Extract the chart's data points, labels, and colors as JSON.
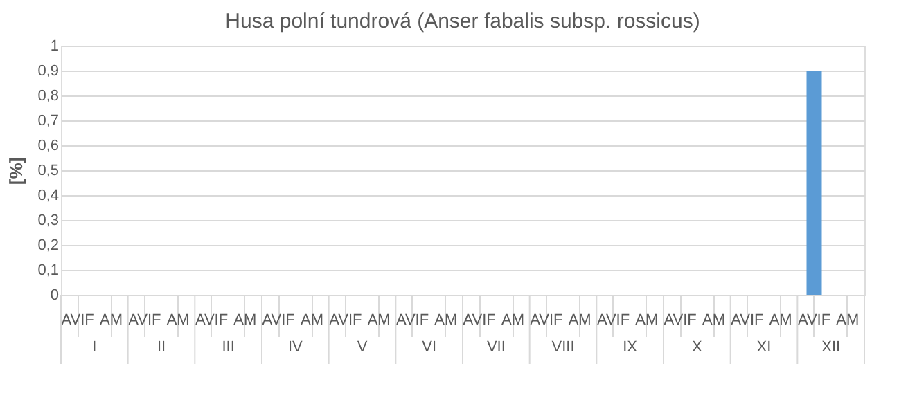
{
  "chart_data": {
    "type": "bar",
    "title": "Husa polní tundrová (Anser fabalis subsp. rossicus)",
    "ylabel": "[%]",
    "categories": [
      "AVIF",
      "AM",
      "AVIF",
      "AM",
      "AVIF",
      "AM",
      "AVIF",
      "AM",
      "AVIF",
      "AM",
      "AVIF",
      "AM",
      "AVIF",
      "AM",
      "AVIF",
      "AM",
      "AVIF",
      "AM",
      "AVIF",
      "AM",
      "AVIF",
      "AM",
      "AVIF",
      "AM"
    ],
    "annotations": [
      "I",
      "II",
      "III",
      "IV",
      "V",
      "VI",
      "VII",
      "VIII",
      "IX",
      "X",
      "XI",
      "XII"
    ],
    "series": [
      {
        "color": "#5b9bd5",
        "values": [
          0,
          0,
          0,
          0,
          0,
          0,
          0,
          0,
          0,
          0,
          0,
          0,
          0,
          0,
          0,
          0,
          0,
          0,
          0,
          0,
          0,
          0,
          0.9,
          0
        ]
      }
    ],
    "ylim": [
      0,
      1
    ],
    "yticks": [
      0,
      {
        "value": 0.1,
        "label": "0,1"
      },
      {
        "value": 0.2,
        "label": "0,2"
      },
      {
        "value": 0.3,
        "label": "0,3"
      },
      {
        "value": 0.4,
        "label": "0,4"
      },
      {
        "value": 0.5,
        "label": "0,5"
      },
      {
        "value": 0.6,
        "label": "0,6"
      },
      {
        "value": 0.7,
        "label": "0,7"
      },
      {
        "value": 0.8,
        "label": "0,8"
      },
      {
        "value": 0.9,
        "label": "0,9"
      },
      1
    ],
    "grid": "y",
    "legend": false
  }
}
